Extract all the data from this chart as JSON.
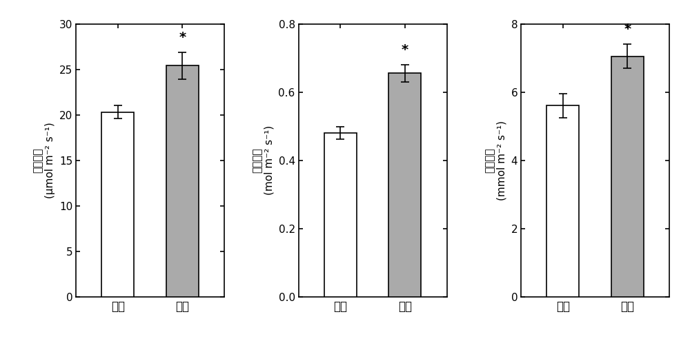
{
  "subplots": [
    {
      "ylabel_chinese": "光合速率",
      "ylabel_unit": "(μmol m⁻² s⁻¹)",
      "categories": [
        "对照",
        "灌根"
      ],
      "values": [
        20.3,
        25.4
      ],
      "errors": [
        0.7,
        1.5
      ],
      "ylim": [
        0,
        30
      ],
      "yticks": [
        0,
        5,
        10,
        15,
        20,
        25,
        30
      ],
      "ytick_labels": [
        "0",
        "5",
        "10",
        "15",
        "20",
        "25",
        "30"
      ],
      "star_bar_index": 1
    },
    {
      "ylabel_chinese": "气孔导度",
      "ylabel_unit": "(mol m⁻² s⁻¹)",
      "categories": [
        "对照",
        "灌根"
      ],
      "values": [
        0.48,
        0.655
      ],
      "errors": [
        0.018,
        0.025
      ],
      "ylim": [
        0.0,
        0.8
      ],
      "yticks": [
        0.0,
        0.2,
        0.4,
        0.6,
        0.8
      ],
      "ytick_labels": [
        "0.0",
        "0.2",
        "0.4",
        "0.6",
        "0.8"
      ],
      "star_bar_index": 1
    },
    {
      "ylabel_chinese": "蹒腾速率",
      "ylabel_unit": "(mmol m⁻² s⁻¹)",
      "categories": [
        "对照",
        "灌根"
      ],
      "values": [
        5.6,
        7.05
      ],
      "errors": [
        0.35,
        0.35
      ],
      "ylim": [
        0,
        8
      ],
      "yticks": [
        0,
        2,
        4,
        6,
        8
      ],
      "ytick_labels": [
        "0",
        "2",
        "4",
        "6",
        "8"
      ],
      "star_bar_index": 1
    }
  ],
  "bar_colors": [
    "#ffffff",
    "#aaaaaa"
  ],
  "bar_edgecolor": "#000000",
  "errorbar_color": "#000000",
  "star_color": "#000000",
  "background_color": "#ffffff",
  "bar_width": 0.5,
  "capsize": 4,
  "linewidth": 1.2
}
